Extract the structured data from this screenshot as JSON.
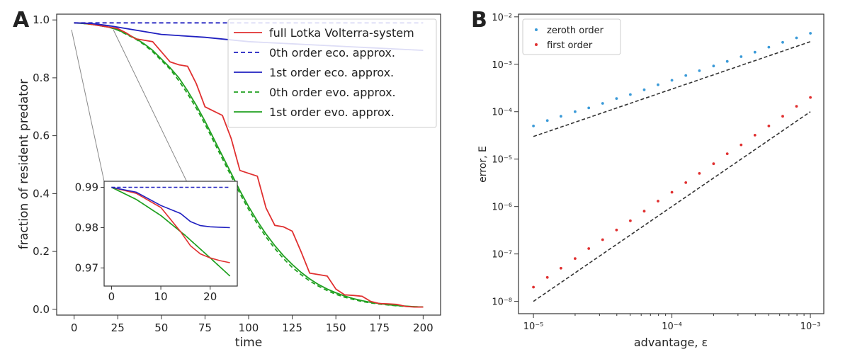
{
  "panel_a": {
    "label": "A",
    "xlabel": "time",
    "ylabel": "fraction of resident predator",
    "xticks": [
      "0",
      "25",
      "50",
      "75",
      "100",
      "125",
      "150",
      "175",
      "200"
    ],
    "yticks": [
      "0.0",
      "0.2",
      "0.4",
      "0.6",
      "0.8",
      "1.0"
    ],
    "inset": {
      "xticks": [
        "0",
        "10",
        "20"
      ],
      "yticks": [
        "0.97",
        "0.98",
        "0.99"
      ]
    }
  },
  "panel_b": {
    "label": "B",
    "xlabel": "advantage, ε",
    "ylabel": "error, E",
    "xticks": [
      "10⁻⁵",
      "10⁻⁴",
      "10⁻³"
    ],
    "yticks": [
      "10⁻⁸",
      "10⁻⁷",
      "10⁻⁶",
      "10⁻⁵",
      "10⁻⁴",
      "10⁻³",
      "10⁻²"
    ]
  },
  "chart_data": [
    {
      "type": "line",
      "panel": "A",
      "xlabel": "time",
      "ylabel": "fraction of resident predator",
      "xlim": [
        -10,
        210
      ],
      "ylim": [
        -0.02,
        1.02
      ],
      "grid": false,
      "legend_position": "top-right",
      "series": [
        {
          "name": "full Lotka Volterra-system",
          "style": "solid",
          "color": "#e03030",
          "x": [
            0,
            5,
            10,
            15,
            20,
            25,
            30,
            35,
            40,
            45,
            50,
            55,
            60,
            65,
            70,
            75,
            80,
            85,
            90,
            95,
            100,
            105,
            110,
            115,
            120,
            125,
            130,
            135,
            140,
            145,
            150,
            155,
            160,
            165,
            170,
            175,
            180,
            185,
            190,
            195,
            200
          ],
          "y": [
            0.99,
            0.989,
            0.985,
            0.98,
            0.975,
            0.97,
            0.955,
            0.935,
            0.93,
            0.925,
            0.89,
            0.855,
            0.845,
            0.84,
            0.78,
            0.7,
            0.685,
            0.67,
            0.59,
            0.48,
            0.47,
            0.46,
            0.35,
            0.29,
            0.285,
            0.27,
            0.2,
            0.125,
            0.12,
            0.115,
            0.07,
            0.05,
            0.048,
            0.045,
            0.027,
            0.02,
            0.019,
            0.017,
            0.01,
            0.008,
            0.008
          ]
        },
        {
          "name": "0th order eco. approx.",
          "style": "dashed",
          "color": "#2020c0",
          "x": [
            0,
            50,
            100,
            150,
            200
          ],
          "y": [
            0.99,
            0.99,
            0.99,
            0.99,
            0.99
          ]
        },
        {
          "name": "1st order eco. approx.",
          "style": "solid",
          "color": "#2020c0",
          "x": [
            0,
            10,
            20,
            30,
            40,
            50,
            75,
            100,
            150,
            200
          ],
          "y": [
            0.99,
            0.988,
            0.98,
            0.97,
            0.96,
            0.95,
            0.94,
            0.925,
            0.91,
            0.895
          ]
        },
        {
          "name": "0th order evo. approx.",
          "style": "dashed",
          "color": "#20a020",
          "x": [
            0,
            5,
            10,
            15,
            20,
            25,
            30,
            35,
            40,
            45,
            50,
            55,
            60,
            65,
            70,
            75,
            80,
            85,
            90,
            95,
            100,
            105,
            110,
            115,
            120,
            125,
            130,
            135,
            140,
            145,
            150,
            155,
            160,
            165,
            170,
            175,
            180,
            185,
            190,
            195,
            200
          ],
          "y": [
            0.99,
            0.988,
            0.985,
            0.98,
            0.975,
            0.965,
            0.95,
            0.935,
            0.915,
            0.89,
            0.86,
            0.83,
            0.79,
            0.745,
            0.695,
            0.64,
            0.58,
            0.52,
            0.46,
            0.4,
            0.345,
            0.295,
            0.25,
            0.21,
            0.175,
            0.145,
            0.12,
            0.098,
            0.08,
            0.065,
            0.052,
            0.042,
            0.034,
            0.027,
            0.022,
            0.018,
            0.015,
            0.012,
            0.01,
            0.009,
            0.008
          ]
        },
        {
          "name": "1st order evo. approx.",
          "style": "solid",
          "color": "#20a020",
          "x": [
            0,
            5,
            10,
            15,
            20,
            25,
            30,
            35,
            40,
            45,
            50,
            55,
            60,
            65,
            70,
            75,
            80,
            85,
            90,
            95,
            100,
            105,
            110,
            115,
            120,
            125,
            130,
            135,
            140,
            145,
            150,
            155,
            160,
            165,
            170,
            175,
            180,
            185,
            190,
            195,
            200
          ],
          "y": [
            0.99,
            0.988,
            0.985,
            0.98,
            0.975,
            0.966,
            0.952,
            0.937,
            0.918,
            0.895,
            0.865,
            0.835,
            0.8,
            0.755,
            0.705,
            0.65,
            0.59,
            0.53,
            0.47,
            0.41,
            0.355,
            0.305,
            0.26,
            0.22,
            0.185,
            0.155,
            0.128,
            0.105,
            0.086,
            0.07,
            0.057,
            0.046,
            0.037,
            0.03,
            0.024,
            0.02,
            0.016,
            0.013,
            0.011,
            0.009,
            0.008
          ]
        }
      ]
    },
    {
      "type": "line",
      "panel": "A-inset",
      "xlim": [
        -1.5,
        25.5
      ],
      "ylim": [
        0.9655,
        0.9915
      ],
      "series": [
        {
          "name": "full Lotka Volterra-system",
          "color": "#e03030",
          "style": "solid",
          "x": [
            0,
            5,
            10,
            14,
            16,
            18,
            20,
            22,
            24
          ],
          "y": [
            0.99,
            0.9885,
            0.985,
            0.979,
            0.9755,
            0.9735,
            0.9725,
            0.9718,
            0.9713
          ]
        },
        {
          "name": "0th order eco. approx.",
          "color": "#2020c0",
          "style": "dashed",
          "x": [
            0,
            24
          ],
          "y": [
            0.99,
            0.99
          ]
        },
        {
          "name": "1st order eco. approx.",
          "color": "#2020c0",
          "style": "solid",
          "x": [
            0,
            5,
            10,
            14,
            16,
            18,
            20,
            22,
            24
          ],
          "y": [
            0.99,
            0.9888,
            0.9855,
            0.9835,
            0.9815,
            0.9805,
            0.9802,
            0.9801,
            0.98
          ]
        },
        {
          "name": "0th order evo. approx.",
          "color": "#20a020",
          "style": "dashed",
          "x": [
            0,
            5,
            10,
            15,
            20,
            24
          ],
          "y": [
            0.99,
            0.987,
            0.983,
            0.978,
            0.9725,
            0.968
          ]
        },
        {
          "name": "1st order evo. approx.",
          "color": "#20a020",
          "style": "solid",
          "x": [
            0,
            5,
            10,
            15,
            20,
            24
          ],
          "y": [
            0.99,
            0.987,
            0.983,
            0.978,
            0.9725,
            0.968
          ]
        }
      ]
    },
    {
      "type": "scatter",
      "panel": "B",
      "xlabel": "advantage, ε",
      "ylabel": "error, E",
      "xscale": "log",
      "yscale": "log",
      "xlim": [
        7.8e-06,
        0.00125
      ],
      "ylim": [
        5.5e-09,
        0.0114
      ],
      "legend_position": "top-left",
      "series": [
        {
          "name": "zeroth order",
          "color": "#3a9ad8",
          "x": [
            1e-05,
            1.26e-05,
            1.58e-05,
            2e-05,
            2.51e-05,
            3.16e-05,
            3.98e-05,
            5.01e-05,
            6.31e-05,
            7.94e-05,
            0.0001,
            0.000126,
            0.000158,
            0.0002,
            0.000251,
            0.000316,
            0.000398,
            0.000501,
            0.000631,
            0.000794,
            0.001
          ],
          "y": [
            5e-05,
            6.5e-05,
            8e-05,
            0.0001,
            0.00012,
            0.00015,
            0.00019,
            0.00023,
            0.00029,
            0.00037,
            0.00046,
            0.00058,
            0.00073,
            0.00092,
            0.00115,
            0.00145,
            0.0018,
            0.0023,
            0.0029,
            0.0036,
            0.0045
          ]
        },
        {
          "name": "first order",
          "color": "#e03030",
          "x": [
            1e-05,
            1.26e-05,
            1.58e-05,
            2e-05,
            2.51e-05,
            3.16e-05,
            3.98e-05,
            5.01e-05,
            6.31e-05,
            7.94e-05,
            0.0001,
            0.000126,
            0.000158,
            0.0002,
            0.000251,
            0.000316,
            0.000398,
            0.000501,
            0.000631,
            0.000794,
            0.001
          ],
          "y": [
            2e-08,
            3.2e-08,
            5e-08,
            8e-08,
            1.3e-07,
            2e-07,
            3.2e-07,
            5e-07,
            8e-07,
            1.3e-06,
            2e-06,
            3.2e-06,
            5e-06,
            8e-06,
            1.3e-05,
            2e-05,
            3.2e-05,
            5e-05,
            8e-05,
            0.00013,
            0.0002
          ]
        },
        {
          "name": "",
          "color": "#333333",
          "style": "dashed",
          "x": [
            1e-05,
            0.001
          ],
          "y": [
            3e-05,
            0.003
          ]
        },
        {
          "name": "",
          "color": "#333333",
          "style": "dashed",
          "x": [
            1e-05,
            0.001
          ],
          "y": [
            1e-08,
            0.0001
          ]
        }
      ]
    }
  ]
}
